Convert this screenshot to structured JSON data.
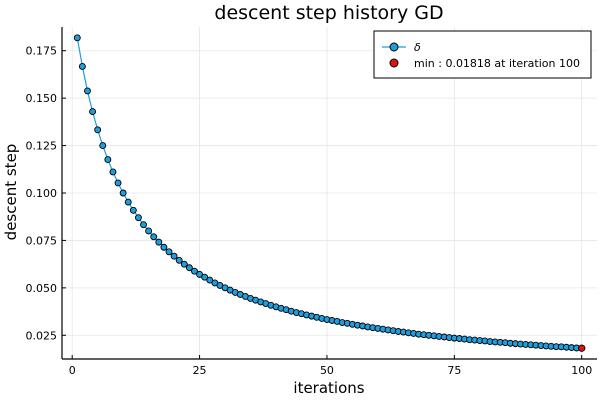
{
  "chart_data": {
    "type": "line",
    "title": "descent step history GD",
    "xlabel": "iterations",
    "ylabel": "descent step",
    "xlim": [
      -2,
      103
    ],
    "ylim": [
      0.0125,
      0.1875
    ],
    "x_ticks": [
      0,
      25,
      50,
      75,
      100
    ],
    "y_ticks": [
      0.025,
      0.05,
      0.075,
      0.1,
      0.125,
      0.15,
      0.175
    ],
    "x_tick_labels": [
      "0",
      "25",
      "50",
      "75",
      "100"
    ],
    "y_tick_labels": [
      "0.025",
      "0.050",
      "0.075",
      "0.100",
      "0.125",
      "0.150",
      "0.175"
    ],
    "grid": true,
    "legend_position": "top-right",
    "series": [
      {
        "name": "δ",
        "color": "#1f9ede",
        "marker": "circle",
        "x": [
          1,
          2,
          3,
          4,
          5,
          6,
          7,
          8,
          9,
          10,
          11,
          12,
          13,
          14,
          15,
          16,
          17,
          18,
          19,
          20,
          21,
          22,
          23,
          24,
          25,
          26,
          27,
          28,
          29,
          30,
          31,
          32,
          33,
          34,
          35,
          36,
          37,
          38,
          39,
          40,
          41,
          42,
          43,
          44,
          45,
          46,
          47,
          48,
          49,
          50,
          51,
          52,
          53,
          54,
          55,
          56,
          57,
          58,
          59,
          60,
          61,
          62,
          63,
          64,
          65,
          66,
          67,
          68,
          69,
          70,
          71,
          72,
          73,
          74,
          75,
          76,
          77,
          78,
          79,
          80,
          81,
          82,
          83,
          84,
          85,
          86,
          87,
          88,
          89,
          90,
          91,
          92,
          93,
          94,
          95,
          96,
          97,
          98,
          99,
          100
        ],
        "y": [
          0.1818,
          0.1667,
          0.1538,
          0.1429,
          0.1333,
          0.125,
          0.1176,
          0.1111,
          0.1053,
          0.1,
          0.0952,
          0.0909,
          0.087,
          0.0833,
          0.08,
          0.0769,
          0.0741,
          0.0714,
          0.069,
          0.0667,
          0.0645,
          0.0625,
          0.0606,
          0.0588,
          0.0571,
          0.0556,
          0.0541,
          0.0526,
          0.0513,
          0.05,
          0.0488,
          0.0476,
          0.0465,
          0.0455,
          0.0444,
          0.0435,
          0.0426,
          0.0417,
          0.0408,
          0.04,
          0.0392,
          0.0385,
          0.0377,
          0.037,
          0.0364,
          0.0357,
          0.0351,
          0.0345,
          0.0339,
          0.0333,
          0.0328,
          0.0323,
          0.0317,
          0.0313,
          0.0308,
          0.0303,
          0.0299,
          0.0294,
          0.029,
          0.0286,
          0.0282,
          0.0278,
          0.0274,
          0.027,
          0.0267,
          0.0263,
          0.026,
          0.0256,
          0.0253,
          0.025,
          0.0247,
          0.0244,
          0.0241,
          0.0238,
          0.0235,
          0.0233,
          0.023,
          0.0227,
          0.0225,
          0.0222,
          0.022,
          0.0217,
          0.0215,
          0.0213,
          0.0211,
          0.0208,
          0.0206,
          0.0204,
          0.0202,
          0.02,
          0.0198,
          0.0196,
          0.0194,
          0.0192,
          0.019,
          0.0189,
          0.0187,
          0.0185,
          0.0183,
          0.01818
        ]
      },
      {
        "name": "min : 0.01818 at iteration 100",
        "color": "#e0140c",
        "marker": "circle",
        "x": [
          100
        ],
        "y": [
          0.01818
        ]
      }
    ]
  }
}
